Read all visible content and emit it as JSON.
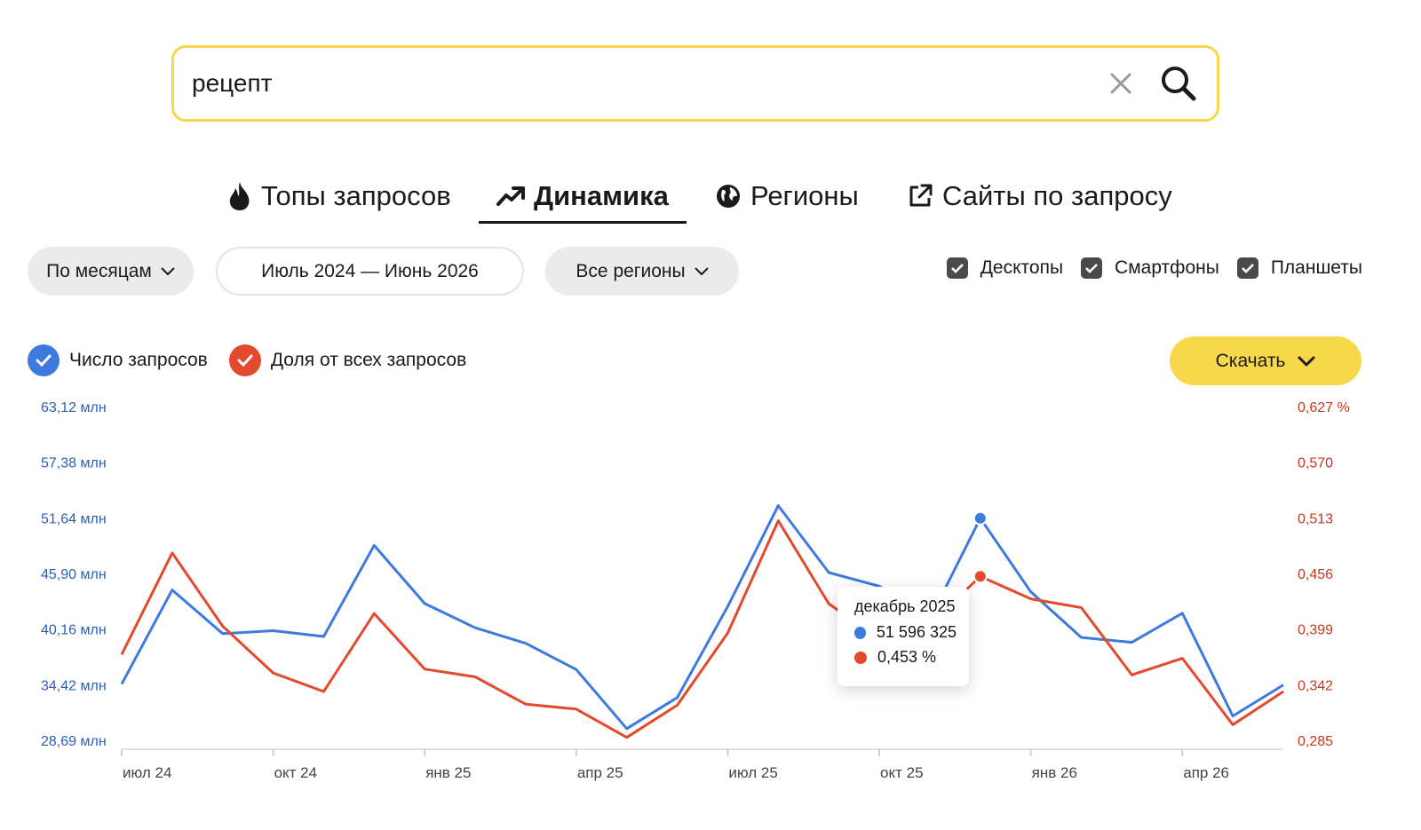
{
  "search": {
    "value": "рецепт"
  },
  "tabs": [
    {
      "label": "Топы запросов",
      "icon": "fire-icon"
    },
    {
      "label": "Динамика",
      "icon": "trend-up-icon",
      "active": true
    },
    {
      "label": "Регионы",
      "icon": "globe-icon"
    },
    {
      "label": "Сайты по запросу",
      "icon": "external-link-icon"
    }
  ],
  "filters": {
    "period_label": "По месяцам",
    "date_range_label": "Июль 2024 — Июнь 2026",
    "region_label": "Все регионы"
  },
  "devices": [
    {
      "label": "Десктопы",
      "checked": true
    },
    {
      "label": "Смартфоны",
      "checked": true
    },
    {
      "label": "Планшеты",
      "checked": true
    }
  ],
  "legend": {
    "queries_label": "Число запросов",
    "share_label": "Доля от всех запросов"
  },
  "download_label": "Скачать",
  "colors": {
    "accent_yellow": "#f8d84b",
    "queries_blue": "#3d7ae0",
    "share_red": "#e34a2b",
    "left_axis_text": "#2c5fb3",
    "right_axis_text": "#c8381f"
  },
  "chart_data": {
    "type": "line",
    "categories": [
      "2024-07",
      "2024-08",
      "2024-09",
      "2024-10",
      "2024-11",
      "2024-12",
      "2025-01",
      "2025-02",
      "2025-03",
      "2025-04",
      "2025-05",
      "2025-06",
      "2025-07",
      "2025-08",
      "2025-09",
      "2025-10",
      "2025-11",
      "2025-12",
      "2026-01",
      "2026-02",
      "2026-03",
      "2026-04",
      "2026-05",
      "2026-06"
    ],
    "x_tick_labels": [
      "июл 24",
      "окт 24",
      "янв 25",
      "апр 25",
      "июл 25",
      "окт 25",
      "янв 26",
      "апр 26"
    ],
    "x_tick_indices": [
      0,
      3,
      6,
      9,
      12,
      15,
      18,
      21
    ],
    "left_axis_ticks": [
      "63,12 млн",
      "57,38 млн",
      "51,64 млн",
      "45,90 млн",
      "40,16 млн",
      "34,42 млн",
      "28,69 млн"
    ],
    "right_axis_ticks": [
      "0,627 %",
      "0,570",
      "0,513",
      "0,456",
      "0,399",
      "0,342",
      "0,285"
    ],
    "y_left_range": [
      28.69,
      63.12
    ],
    "y_right_range": [
      0.285,
      0.627
    ],
    "series": [
      {
        "name": "Число запросов",
        "axis": "left",
        "unit": "млн",
        "values": [
          34.5,
          44.2,
          39.7,
          40.0,
          39.4,
          48.8,
          42.8,
          40.3,
          38.7,
          36.0,
          29.9,
          33.1,
          42.5,
          52.9,
          46.0,
          44.6,
          41.2,
          51.6,
          44.0,
          39.3,
          38.8,
          41.8,
          31.2,
          34.4
        ]
      },
      {
        "name": "Доля от всех запросов",
        "axis": "right",
        "unit": "%",
        "values": [
          0.373,
          0.477,
          0.402,
          0.354,
          0.335,
          0.415,
          0.358,
          0.35,
          0.322,
          0.317,
          0.288,
          0.321,
          0.395,
          0.51,
          0.425,
          0.389,
          0.404,
          0.453,
          0.43,
          0.421,
          0.352,
          0.369,
          0.301,
          0.335
        ]
      }
    ],
    "tooltip": {
      "title": "декабрь 2025",
      "queries": "51 596 325",
      "share": "0,453 %",
      "index": 17
    }
  }
}
